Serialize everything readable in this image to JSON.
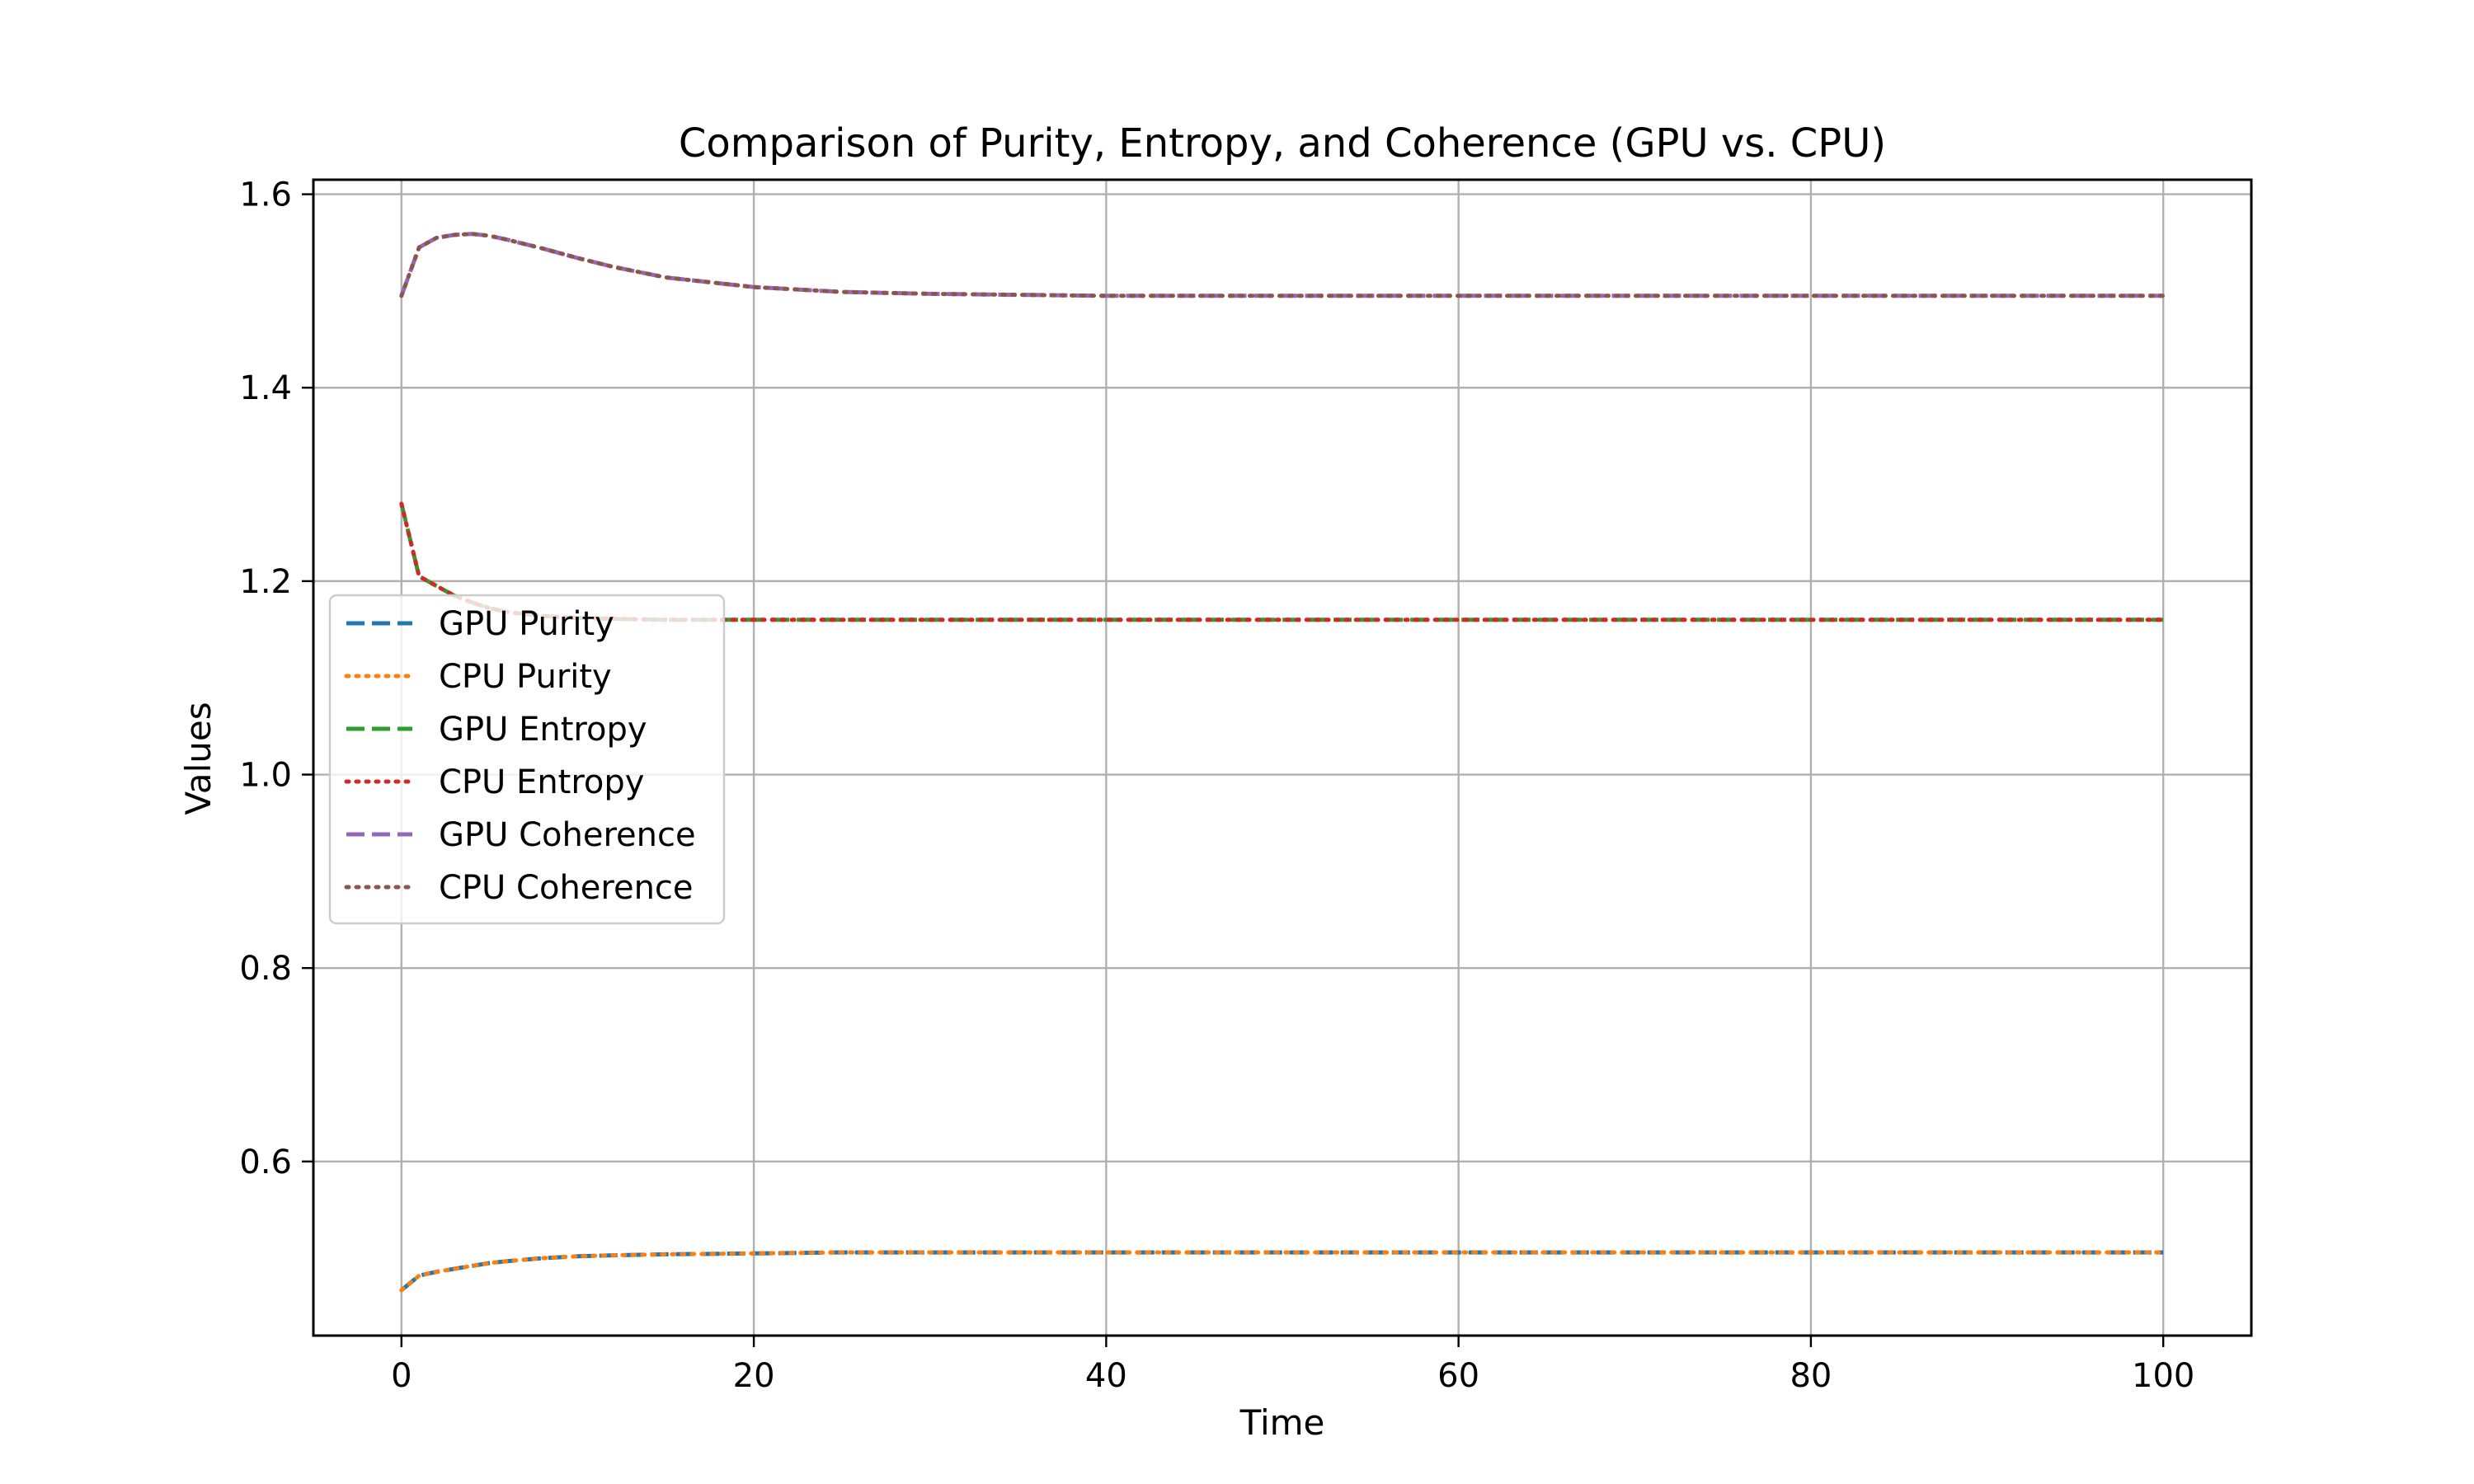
{
  "chart_data": {
    "type": "line",
    "title": "Comparison of Purity, Entropy, and Coherence (GPU vs. CPU)",
    "xlabel": "Time",
    "ylabel": "Values",
    "xlim": [
      -5,
      105
    ],
    "ylim": [
      0.42,
      1.615
    ],
    "xticks": [
      0,
      20,
      40,
      60,
      80,
      100
    ],
    "yticks": [
      0.6,
      0.8,
      1.0,
      1.2,
      1.4,
      1.6
    ],
    "xtick_labels": [
      "0",
      "20",
      "40",
      "60",
      "80",
      "100"
    ],
    "ytick_labels": [
      "0.6",
      "0.8",
      "1.0",
      "1.2",
      "1.4",
      "1.6"
    ],
    "grid": true,
    "legend_position": "center-left",
    "x": [
      0,
      1,
      2,
      3,
      4,
      5,
      6,
      8,
      10,
      12,
      15,
      20,
      25,
      30,
      40,
      50,
      60,
      70,
      80,
      90,
      100
    ],
    "series": [
      {
        "name": "GPU Purity",
        "color": "#1f77b4",
        "style": "dashed",
        "values": [
          0.467,
          0.482,
          0.486,
          0.489,
          0.492,
          0.495,
          0.497,
          0.5,
          0.502,
          0.503,
          0.504,
          0.505,
          0.506,
          0.506,
          0.506,
          0.506,
          0.506,
          0.506,
          0.506,
          0.506,
          0.506
        ]
      },
      {
        "name": "CPU Purity",
        "color": "#ff7f0e",
        "style": "dotted",
        "values": [
          0.467,
          0.482,
          0.486,
          0.489,
          0.492,
          0.495,
          0.497,
          0.5,
          0.502,
          0.503,
          0.504,
          0.505,
          0.506,
          0.506,
          0.506,
          0.506,
          0.506,
          0.506,
          0.506,
          0.506,
          0.506
        ]
      },
      {
        "name": "GPU Entropy",
        "color": "#2ca02c",
        "style": "dashed",
        "values": [
          1.28,
          1.205,
          1.195,
          1.185,
          1.178,
          1.172,
          1.168,
          1.164,
          1.162,
          1.161,
          1.16,
          1.16,
          1.16,
          1.16,
          1.16,
          1.16,
          1.16,
          1.16,
          1.16,
          1.16,
          1.16
        ]
      },
      {
        "name": "CPU Entropy",
        "color": "#d62728",
        "style": "dotted",
        "values": [
          1.28,
          1.205,
          1.195,
          1.185,
          1.178,
          1.172,
          1.168,
          1.164,
          1.162,
          1.161,
          1.16,
          1.16,
          1.16,
          1.16,
          1.16,
          1.16,
          1.16,
          1.16,
          1.16,
          1.16,
          1.16
        ]
      },
      {
        "name": "GPU Coherence",
        "color": "#9467bd",
        "style": "dashed",
        "values": [
          1.495,
          1.545,
          1.555,
          1.558,
          1.559,
          1.557,
          1.553,
          1.544,
          1.534,
          1.525,
          1.514,
          1.504,
          1.499,
          1.497,
          1.495,
          1.495,
          1.495,
          1.495,
          1.495,
          1.495,
          1.495
        ]
      },
      {
        "name": "CPU Coherence",
        "color": "#8c564b",
        "style": "dotted",
        "values": [
          1.495,
          1.545,
          1.555,
          1.558,
          1.559,
          1.557,
          1.553,
          1.544,
          1.534,
          1.525,
          1.514,
          1.504,
          1.499,
          1.497,
          1.495,
          1.495,
          1.495,
          1.495,
          1.495,
          1.495,
          1.495
        ]
      }
    ]
  }
}
